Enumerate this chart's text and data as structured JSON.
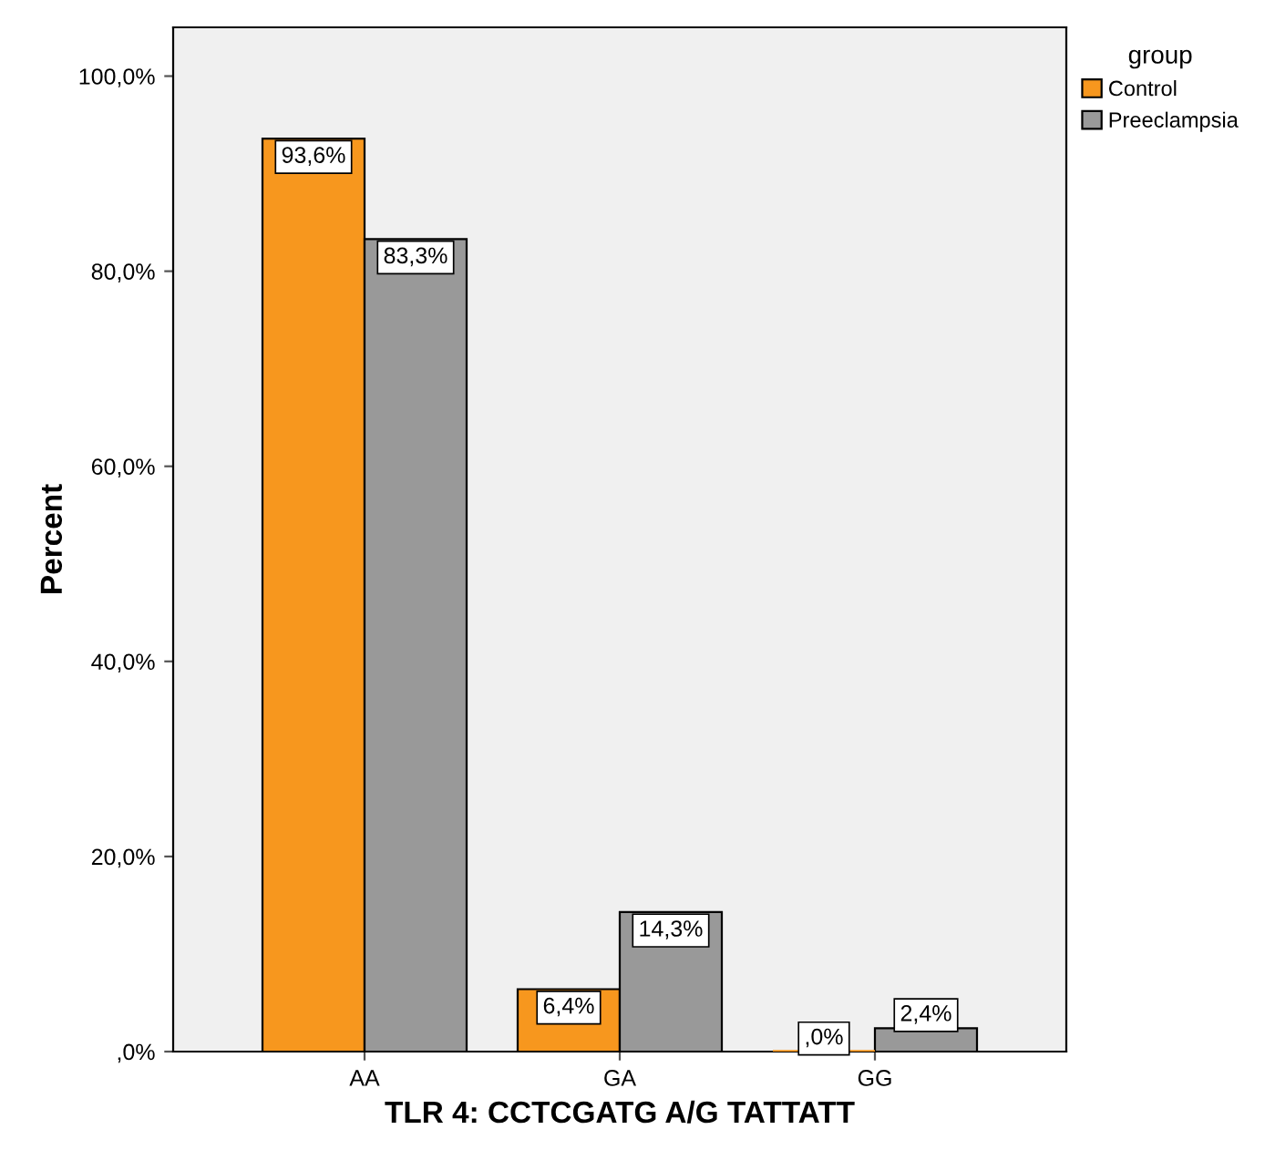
{
  "chart_data": {
    "type": "bar",
    "xlabel": "TLR 4: CCTCGATG A/G TATTATT",
    "ylabel": "Percent",
    "legend_title": "group",
    "categories": [
      "AA",
      "GA",
      "GG"
    ],
    "series": [
      {
        "name": "Control",
        "color": "#f7971e",
        "values": [
          93.6,
          6.4,
          0
        ],
        "value_labels": [
          "93,6%",
          "6,4%",
          ",0%"
        ]
      },
      {
        "name": "Preeclampsia",
        "color": "#999999",
        "values": [
          83.3,
          14.3,
          2.4
        ],
        "value_labels": [
          "83,3%",
          "14,3%",
          "2,4%"
        ]
      }
    ],
    "ylim": [
      0,
      105
    ],
    "yticks": [
      {
        "value": 0,
        "label": ",0%"
      },
      {
        "value": 20,
        "label": "20,0%"
      },
      {
        "value": 40,
        "label": "40,0%"
      },
      {
        "value": 60,
        "label": "60,0%"
      },
      {
        "value": 80,
        "label": "80,0%"
      },
      {
        "value": 100,
        "label": "100,0%"
      }
    ],
    "grid": false,
    "legend": "top right"
  }
}
